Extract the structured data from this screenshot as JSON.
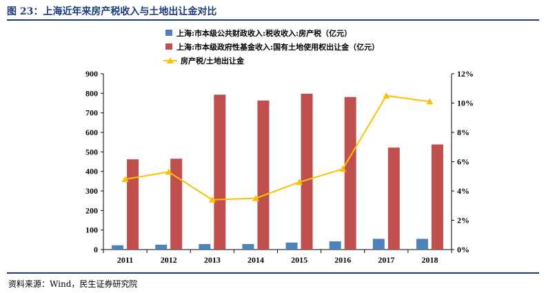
{
  "figure_title": "图 23：上海近年来房产税收入与土地出让金对比",
  "source": "资料来源：Wind，民生证券研究院",
  "chart_data": {
    "type": "bar",
    "categories": [
      "2011",
      "2012",
      "2013",
      "2014",
      "2015",
      "2016",
      "2017",
      "2018"
    ],
    "series": [
      {
        "name": "上海:市本级公共财政收入:税收收入:房产税（亿元）",
        "type": "bar",
        "axis": "left",
        "color": "#4f81bd",
        "values": [
          22,
          25,
          28,
          28,
          36,
          42,
          55,
          55
        ]
      },
      {
        "name": "上海:市本级政府性基金收入:国有土地使用权出让金（亿元）",
        "type": "bar",
        "axis": "left",
        "color": "#c0504d",
        "values": [
          462,
          465,
          793,
          763,
          798,
          781,
          522,
          538
        ]
      },
      {
        "name": "房产税/土地出让金",
        "type": "line",
        "axis": "right",
        "color": "#ffc000",
        "values": [
          4.8,
          5.3,
          3.4,
          3.5,
          4.6,
          5.5,
          10.5,
          10.1
        ]
      }
    ],
    "y_left": {
      "min": 0,
      "max": 900,
      "ticks": [
        "0",
        "100",
        "200",
        "300",
        "400",
        "500",
        "600",
        "700",
        "800",
        "900"
      ]
    },
    "y_right": {
      "min": 0,
      "max": 12,
      "ticks": [
        "0%",
        "2%",
        "4%",
        "6%",
        "8%",
        "10%",
        "12%"
      ]
    },
    "legend_position": "top-left",
    "grid": false
  }
}
